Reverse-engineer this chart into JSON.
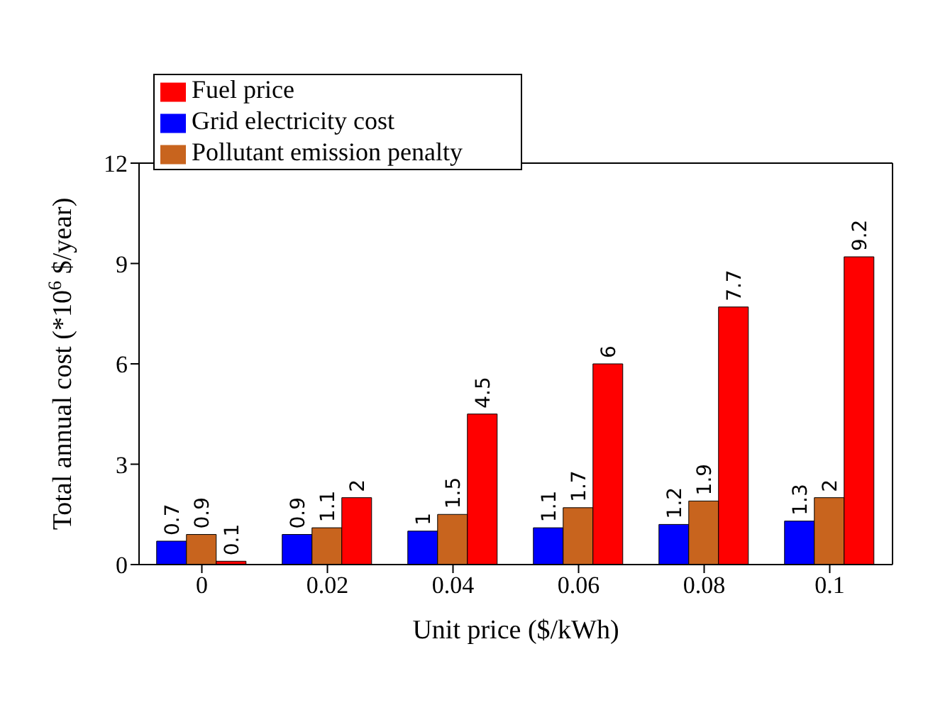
{
  "chart_data": {
    "type": "bar",
    "xlabel": "Unit price ($/kWh)",
    "ylabel": "Total annual cost (*10$^{6}$ $/year)",
    "categories": [
      "0",
      "0.02",
      "0.04",
      "0.06",
      "0.08",
      "0.1"
    ],
    "series": [
      {
        "name": "Grid electricity cost",
        "color": "#0000ff",
        "values": [
          0.7,
          0.9,
          1,
          1.1,
          1.2,
          1.3
        ]
      },
      {
        "name": "Pollutant emission penalty",
        "color": "#c8641e",
        "values": [
          0.9,
          1.1,
          1.5,
          1.7,
          1.9,
          2
        ]
      },
      {
        "name": "Fuel price",
        "color": "#ff0000",
        "values": [
          0.1,
          2,
          4.5,
          6,
          7.7,
          9.2
        ]
      }
    ],
    "ylim": [
      0,
      12
    ],
    "yticks": [
      0,
      3,
      6,
      9,
      12
    ],
    "data_labels": true,
    "legend": "top left",
    "grid": false
  }
}
